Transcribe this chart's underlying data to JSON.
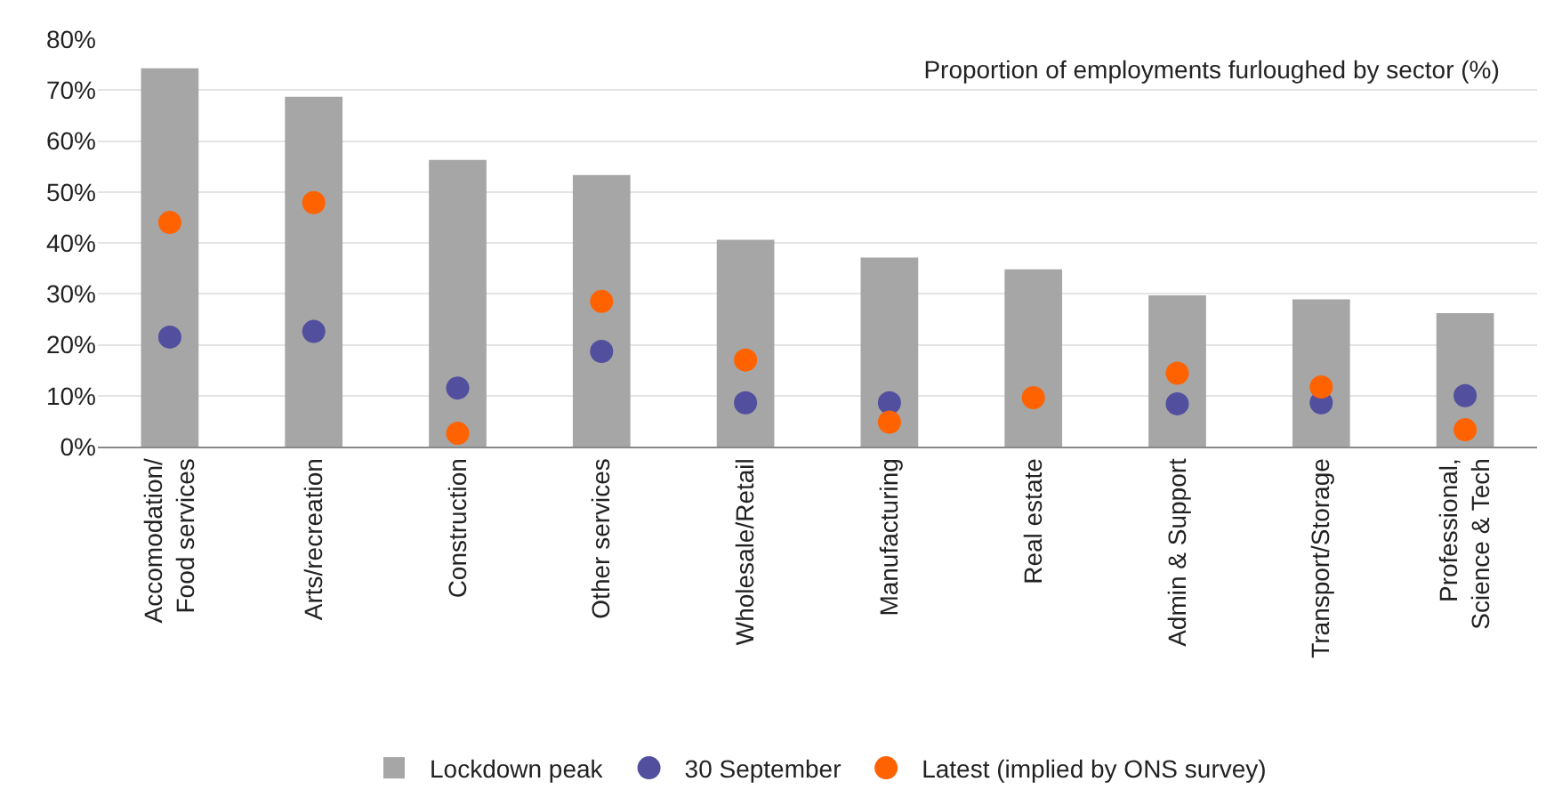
{
  "chart_data": {
    "type": "bar",
    "title": "Proportion of employments furloughed by sector (%)",
    "categories": [
      "Accomodation/\nFood services",
      "Arts/recreation",
      "Construction",
      "Other services",
      "Wholesale/Retail",
      "Manufacturing",
      "Real estate",
      "Admin & Support",
      "Transport/Storage",
      "Professional,\nScience & Tech"
    ],
    "series": [
      {
        "name": "Lockdown peak",
        "color": "#a6a6a6",
        "values": [
          74.3,
          68.7,
          56.3,
          53.3,
          40.6,
          37.1,
          34.8,
          29.7,
          28.9,
          26.2
        ]
      },
      {
        "name": "30 September",
        "type": "scatter",
        "color": "#524f9e",
        "values": [
          21.5,
          22.6,
          11.5,
          18.7,
          8.6,
          8.6,
          null,
          8.4,
          8.6,
          10.0
        ]
      },
      {
        "name": "Latest (implied by ONS survey)",
        "type": "scatter",
        "color": "#ff6200",
        "values": [
          44.0,
          47.9,
          2.6,
          28.5,
          17.0,
          4.8,
          9.6,
          14.4,
          11.7,
          3.3
        ]
      }
    ],
    "ylim": [
      0,
      80
    ],
    "yticks": [
      {
        "value": 0,
        "label": "0%"
      },
      {
        "value": 10,
        "label": "10%"
      },
      {
        "value": 20,
        "label": "20%"
      },
      {
        "value": 30,
        "label": "30%"
      },
      {
        "value": 40,
        "label": "40%"
      },
      {
        "value": 50,
        "label": "50%"
      },
      {
        "value": 60,
        "label": "60%"
      },
      {
        "value": 70,
        "label": "70%"
      },
      {
        "value": 80,
        "label": "80%"
      }
    ],
    "grid": "y",
    "legend": "bottom",
    "marker": "circle"
  }
}
